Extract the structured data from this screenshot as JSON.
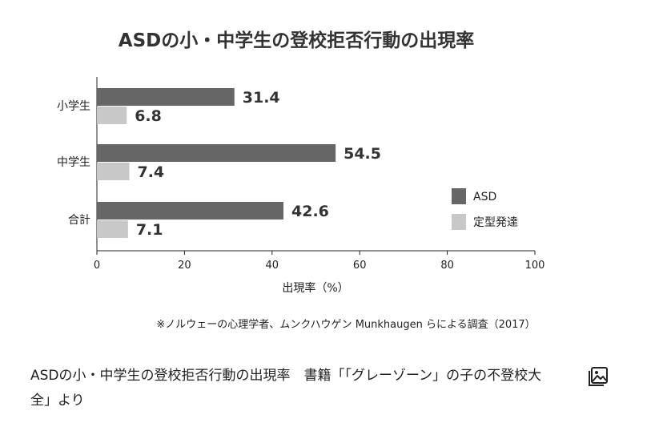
{
  "chart_data": {
    "type": "bar",
    "orientation": "horizontal",
    "title": "ASDの小・中学生の登校拒否行動の出現率",
    "xlabel": "出現率（%）",
    "ylabel": "",
    "categories": [
      "小学生",
      "中学生",
      "合計"
    ],
    "series": [
      {
        "name": "ASD",
        "values": [
          31.4,
          54.5,
          42.6
        ],
        "color": "#666666"
      },
      {
        "name": "定型発達",
        "values": [
          6.8,
          7.4,
          7.1
        ],
        "color": "#c8c8c8"
      }
    ],
    "xlim": [
      0,
      100
    ],
    "xticks": [
      0,
      20,
      40,
      60,
      80,
      100
    ],
    "grid": false,
    "legend_position": "right",
    "note": "※ノルウェーの心理学者、ムンクハウゲン Munkhaugen らによる調査（2017）"
  },
  "caption": "ASDの小・中学生の登校拒否行動の出現率　書籍「「グレーゾーン」の子の不登校大全」より",
  "icons": {
    "gallery": "image-gallery-icon"
  }
}
